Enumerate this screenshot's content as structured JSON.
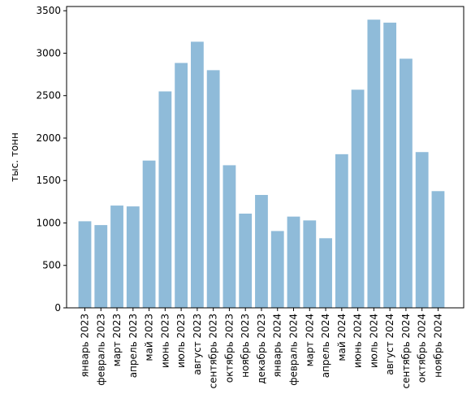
{
  "chart_data": {
    "type": "bar",
    "title": "",
    "xlabel": "",
    "ylabel": "тыс. тонн",
    "ylim": [
      0,
      3550
    ],
    "yticks": [
      0,
      500,
      1000,
      1500,
      2000,
      2500,
      3000,
      3500
    ],
    "grid": false,
    "bar_color": "#8fbbd9",
    "categories": [
      "январь 2023",
      "февраль 2023",
      "март 2023",
      "апрель 2023",
      "май 2023",
      "июнь 2023",
      "июль 2023",
      "август 2023",
      "сентябрь 2023",
      "октябрь 2023",
      "ноябрь 2023",
      "декабрь 2023",
      "январь 2024",
      "февраль 2024",
      "март 2024",
      "апрель 2024",
      "май 2024",
      "июнь 2024",
      "июль 2024",
      "август 2024",
      "сентябрь 2024",
      "октябрь 2024",
      "ноябрь 2024"
    ],
    "values": [
      1020,
      975,
      1205,
      1195,
      1735,
      2550,
      2885,
      3135,
      2800,
      1680,
      1110,
      1330,
      905,
      1075,
      1030,
      820,
      1810,
      2570,
      3395,
      3360,
      2935,
      1835,
      1375
    ]
  }
}
